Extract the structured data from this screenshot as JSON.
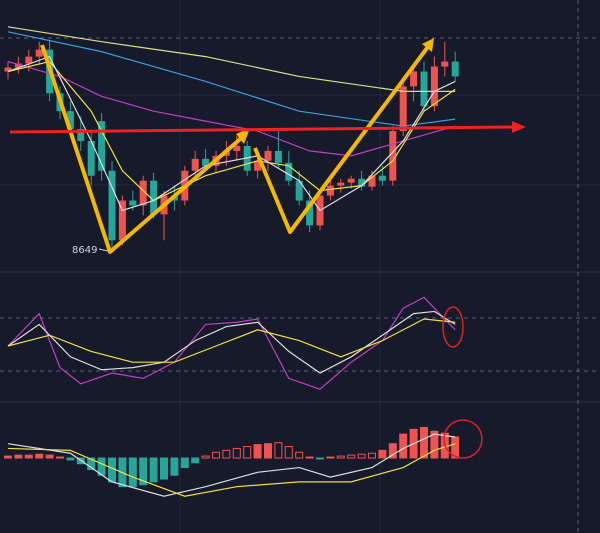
{
  "chart_data": [
    {
      "type": "candlestick",
      "ylim": [
        8610,
        9154
      ],
      "up_color": "#ef5350",
      "down_color": "#26a69a",
      "candles": [
        [
          9014,
          9034,
          8998,
          9022
        ],
        [
          9022,
          9044,
          9010,
          9030
        ],
        [
          9030,
          9058,
          9014,
          9044
        ],
        [
          9044,
          9074,
          9030,
          9058
        ],
        [
          9058,
          9078,
          8954,
          8970
        ],
        [
          8970,
          8984,
          8918,
          8934
        ],
        [
          8934,
          8954,
          8884,
          8898
        ],
        [
          8898,
          8924,
          8854,
          8874
        ],
        [
          8874,
          8894,
          8784,
          8804
        ],
        [
          8914,
          8930,
          8794,
          8814
        ],
        [
          8814,
          8834,
          8649,
          8674
        ],
        [
          8674,
          8764,
          8664,
          8754
        ],
        [
          8754,
          8774,
          8734,
          8744
        ],
        [
          8744,
          8804,
          8724,
          8794
        ],
        [
          8794,
          8810,
          8718,
          8726
        ],
        [
          8726,
          8774,
          8674,
          8764
        ],
        [
          8764,
          8784,
          8734,
          8754
        ],
        [
          8754,
          8824,
          8744,
          8814
        ],
        [
          8814,
          8854,
          8794,
          8838
        ],
        [
          8838,
          8858,
          8814,
          8824
        ],
        [
          8824,
          8854,
          8810,
          8844
        ],
        [
          8844,
          8874,
          8824,
          8854
        ],
        [
          8854,
          8884,
          8834,
          8864
        ],
        [
          8864,
          8874,
          8804,
          8814
        ],
        [
          8814,
          8854,
          8798,
          8834
        ],
        [
          8834,
          8864,
          8814,
          8854
        ],
        [
          8854,
          8894,
          8818,
          8830
        ],
        [
          8830,
          8854,
          8784,
          8794
        ],
        [
          8794,
          8814,
          8744,
          8754
        ],
        [
          8754,
          8774,
          8690,
          8704
        ],
        [
          8704,
          8774,
          8694,
          8764
        ],
        [
          8764,
          8794,
          8754,
          8784
        ],
        [
          8784,
          8798,
          8770,
          8790
        ],
        [
          8790,
          8804,
          8778,
          8798
        ],
        [
          8798,
          8814,
          8774,
          8782
        ],
        [
          8782,
          8814,
          8774,
          8804
        ],
        [
          8804,
          8824,
          8784,
          8794
        ],
        [
          8794,
          8904,
          8784,
          8894
        ],
        [
          8894,
          8994,
          8884,
          8984
        ],
        [
          8984,
          9024,
          8954,
          9014
        ],
        [
          9014,
          9034,
          8934,
          8944
        ],
        [
          8944,
          9044,
          8934,
          9024
        ],
        [
          9024,
          9074,
          9004,
          9034
        ],
        [
          9034,
          9054,
          8994,
          9004
        ]
      ],
      "lines": [
        {
          "color": "#d8e08a",
          "x": [
            0,
            9,
            19,
            28,
            38,
            43
          ],
          "values": [
            9104,
            9074,
            9044,
            9004,
            8974,
            8974
          ]
        },
        {
          "color": "#3a9fd8",
          "x": [
            0,
            9,
            19,
            28,
            38,
            43
          ],
          "values": [
            9094,
            9054,
            8994,
            8934,
            8904,
            8918
          ]
        },
        {
          "color": "#c040c0",
          "x": [
            0,
            5,
            9,
            14,
            19,
            24,
            29,
            33,
            38,
            43
          ],
          "values": [
            9034,
            9004,
            8964,
            8934,
            8914,
            8894,
            8854,
            8844,
            8874,
            8904
          ]
        },
        {
          "color": "#f0e040",
          "x": [
            0,
            4,
            8,
            11,
            14,
            19,
            24,
            27,
            30,
            34,
            37,
            40,
            43
          ],
          "values": [
            9014,
            9034,
            8934,
            8814,
            8754,
            8804,
            8834,
            8824,
            8774,
            8784,
            8834,
            8934,
            8978
          ]
        },
        {
          "color": "#dddddd",
          "x": [
            0,
            4,
            8,
            11,
            14,
            19,
            24,
            28,
            30,
            34,
            38,
            41,
            43
          ],
          "values": [
            9014,
            9044,
            8874,
            8734,
            8754,
            8824,
            8844,
            8794,
            8734,
            8784,
            8874,
            8974,
            8994
          ]
        }
      ]
    },
    {
      "type": "line",
      "ylim": [
        0,
        100
      ],
      "series": [
        {
          "color": "#c040c0",
          "x": [
            0,
            3,
            5,
            7,
            10,
            13,
            16,
            19,
            22,
            24,
            27,
            30,
            33,
            36,
            38,
            40,
            42,
            43
          ],
          "values": [
            50,
            80,
            30,
            15,
            25,
            20,
            35,
            70,
            72,
            75,
            20,
            10,
            35,
            55,
            85,
            95,
            75,
            65
          ]
        },
        {
          "color": "#dddddd",
          "x": [
            0,
            3,
            6,
            9,
            12,
            15,
            18,
            21,
            24,
            27,
            30,
            33,
            36,
            39,
            41,
            43
          ],
          "values": [
            50,
            70,
            40,
            28,
            30,
            35,
            55,
            68,
            72,
            45,
            25,
            40,
            60,
            80,
            82,
            70
          ]
        },
        {
          "color": "#f0e040",
          "x": [
            0,
            4,
            8,
            12,
            16,
            20,
            24,
            28,
            32,
            36,
            40,
            43
          ],
          "values": [
            50,
            60,
            45,
            35,
            35,
            50,
            65,
            55,
            40,
            55,
            75,
            72
          ]
        }
      ]
    },
    {
      "type": "bar",
      "ylim": [
        -45,
        45
      ],
      "up_color": "#ef5350",
      "down_color": "#26a69a",
      "values": [
        2,
        3,
        3,
        4,
        3,
        1,
        -2,
        -6,
        -12,
        -18,
        -25,
        -30,
        -30,
        -28,
        -25,
        -22,
        -18,
        -10,
        -5,
        2,
        6,
        8,
        10,
        12,
        14,
        15,
        16,
        12,
        6,
        1,
        -1,
        1,
        2,
        3,
        4,
        5,
        8,
        15,
        25,
        30,
        32,
        28,
        26,
        22
      ],
      "series": [
        {
          "color": "#dddddd",
          "x": [
            0,
            6,
            10,
            15,
            19,
            24,
            28,
            31,
            35,
            38,
            41,
            43
          ],
          "values": [
            15,
            5,
            -25,
            -40,
            -30,
            -15,
            -10,
            -20,
            -10,
            10,
            25,
            22
          ]
        },
        {
          "color": "#f0e040",
          "x": [
            0,
            6,
            12,
            17,
            22,
            28,
            33,
            38,
            41,
            43
          ],
          "values": [
            10,
            8,
            -20,
            -40,
            -30,
            -25,
            -25,
            -10,
            8,
            15
          ]
        }
      ]
    }
  ]
}
